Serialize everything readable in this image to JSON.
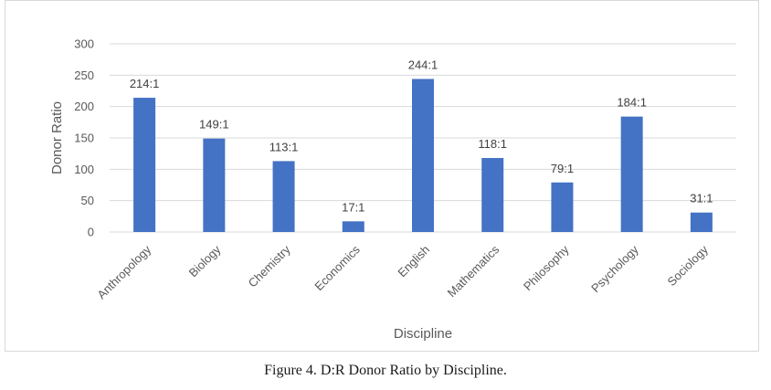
{
  "chart_data": {
    "type": "bar",
    "title": "",
    "xlabel": "Discipline",
    "ylabel": "Donor Ratio",
    "ylim": [
      0,
      300
    ],
    "yticks": [
      0,
      50,
      100,
      150,
      200,
      250,
      300
    ],
    "grid": true,
    "categories": [
      "Anthropology",
      "Biology",
      "Chemistry",
      "Economics",
      "English",
      "Mathematics",
      "Philosophy",
      "Psychology",
      "Sociology"
    ],
    "values": [
      214,
      149,
      113,
      17,
      244,
      118,
      79,
      184,
      31
    ],
    "data_labels": [
      "214:1",
      "149:1",
      "113:1",
      "17:1",
      "244:1",
      "118:1",
      "79:1",
      "184:1",
      "31:1"
    ],
    "bar_color": "#4472c4",
    "grid_color": "#d9d9d9"
  },
  "caption": "Figure 4. D:R Donor Ratio by Discipline."
}
